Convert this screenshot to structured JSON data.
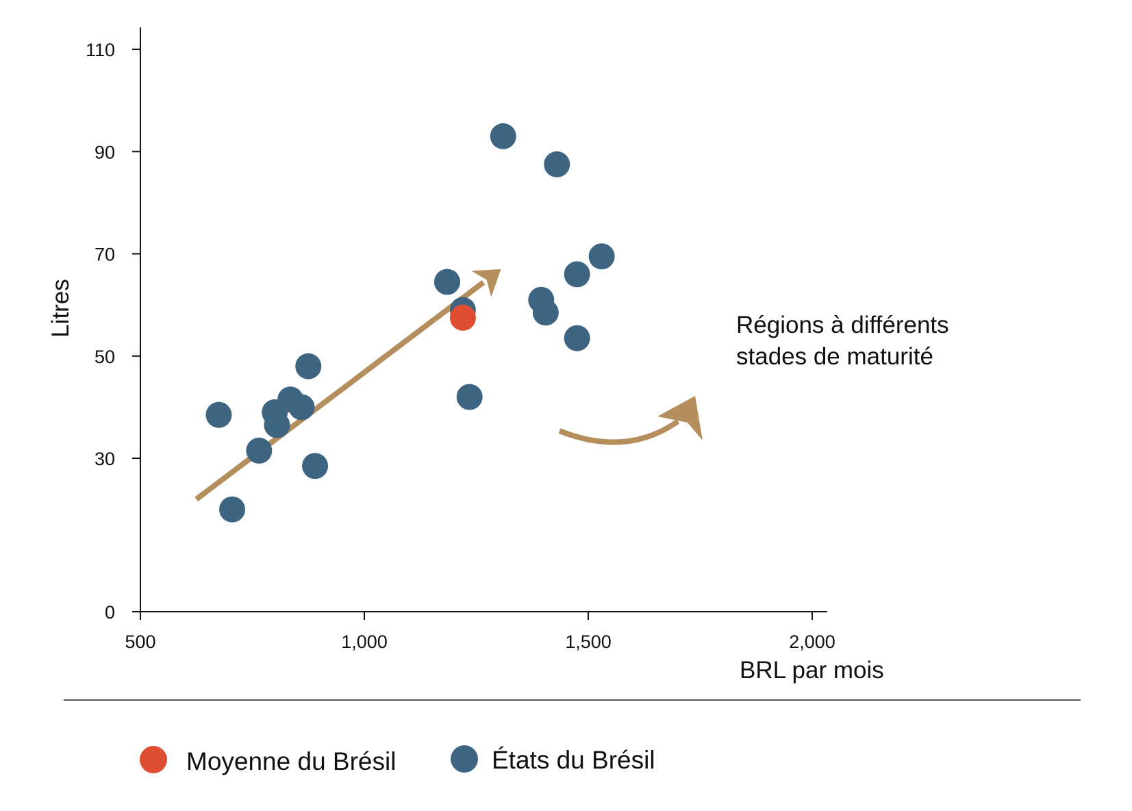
{
  "chart_data": {
    "type": "scatter",
    "title": "",
    "xlabel": "BRL par mois",
    "ylabel": "Litres",
    "xlim": [
      500,
      2000
    ],
    "ylim": [
      0,
      110
    ],
    "x_ticks": [
      {
        "value": 500,
        "label": "500"
      },
      {
        "value": 1000,
        "label": "1,000"
      },
      {
        "value": 1500,
        "label": "1,500"
      },
      {
        "value": 2000,
        "label": "2,000"
      }
    ],
    "y_ticks": [
      {
        "value": 0,
        "label": "0"
      },
      {
        "value": 30,
        "label": "30"
      },
      {
        "value": 50,
        "label": "50"
      },
      {
        "value": 70,
        "label": "70"
      },
      {
        "value": 90,
        "label": "90"
      },
      {
        "value": 110,
        "label": "110"
      }
    ],
    "grid": false,
    "series": [
      {
        "name": "États du Brésil",
        "color": "#3d6480",
        "points": [
          {
            "x": 1310,
            "y": 93
          },
          {
            "x": 1430,
            "y": 87.5
          },
          {
            "x": 1530,
            "y": 69.5
          },
          {
            "x": 1475,
            "y": 66
          },
          {
            "x": 1185,
            "y": 64.5
          },
          {
            "x": 1395,
            "y": 61
          },
          {
            "x": 1220,
            "y": 59
          },
          {
            "x": 1405,
            "y": 58.5
          },
          {
            "x": 1475,
            "y": 53.5
          },
          {
            "x": 875,
            "y": 48
          },
          {
            "x": 1235,
            "y": 42
          },
          {
            "x": 835,
            "y": 41.5
          },
          {
            "x": 860,
            "y": 40
          },
          {
            "x": 800,
            "y": 39
          },
          {
            "x": 675,
            "y": 38.5
          },
          {
            "x": 805,
            "y": 36.5
          },
          {
            "x": 765,
            "y": 31.5
          },
          {
            "x": 890,
            "y": 28.5
          },
          {
            "x": 705,
            "y": 20
          }
        ]
      },
      {
        "name": "Moyenne du Brésil",
        "color": "#e04e32",
        "points": [
          {
            "x": 1220,
            "y": 57.5
          }
        ]
      }
    ],
    "trend_arrow": {
      "color": "#b48e5c",
      "from": {
        "x": 625,
        "y": 22
      },
      "to": {
        "x": 1305,
        "y": 67
      }
    },
    "annotations": [
      {
        "text_lines": [
          "Régions à différents",
          "stades de maturité"
        ],
        "arrow": "curved",
        "arrow_color": "#b48e5c"
      }
    ],
    "legend": {
      "position": "bottom",
      "items": [
        {
          "label": "Moyenne du Brésil",
          "color": "#e04e32"
        },
        {
          "label": "États du Brésil",
          "color": "#3d6480"
        }
      ]
    }
  }
}
